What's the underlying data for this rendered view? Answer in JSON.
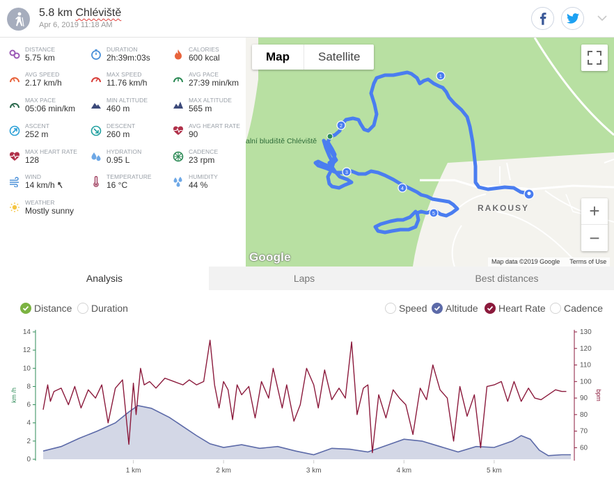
{
  "header": {
    "sport_icon": "hiking-person-icon",
    "distance_title": "5.8 km",
    "place_title": "Chléviště",
    "date": "Apr 6, 2019 11:18 AM",
    "share_icons": [
      "facebook-icon",
      "twitter-icon"
    ],
    "menu_icon": "chevron-down-icon"
  },
  "stats": [
    {
      "key": "distance",
      "label": "DISTANCE",
      "value": "5.75 km",
      "icon": "distance-icon",
      "color": "#9b59b6"
    },
    {
      "key": "duration",
      "label": "DURATION",
      "value": "2h:39m:03s",
      "icon": "stopwatch-icon",
      "color": "#4a90d9"
    },
    {
      "key": "calories",
      "label": "CALORIES",
      "value": "600 kcal",
      "icon": "flame-icon",
      "color": "#e8643c"
    },
    {
      "key": "avg_speed",
      "label": "AVG SPEED",
      "value": "2.17 km/h",
      "icon": "speedometer-icon",
      "color": "#e8643c"
    },
    {
      "key": "max_speed",
      "label": "MAX SPEED",
      "value": "11.76 km/h",
      "icon": "speedometer-max-icon",
      "color": "#d9413c"
    },
    {
      "key": "avg_pace",
      "label": "AVG PACE",
      "value": "27:39 min/km",
      "icon": "pace-icon",
      "color": "#2e8b57"
    },
    {
      "key": "max_pace",
      "label": "MAX PACE",
      "value": "05:06 min/km",
      "icon": "pace-max-icon",
      "color": "#2e6b4f"
    },
    {
      "key": "min_altitude",
      "label": "MIN ALTITUDE",
      "value": "460 m",
      "icon": "mountain-icon",
      "color": "#3c4a7a"
    },
    {
      "key": "max_altitude",
      "label": "MAX ALTITUDE",
      "value": "565 m",
      "icon": "mountain-peak-icon",
      "color": "#3c4a7a"
    },
    {
      "key": "ascent",
      "label": "ASCENT",
      "value": "252 m",
      "icon": "ascent-icon",
      "color": "#2a9fd6"
    },
    {
      "key": "descent",
      "label": "DESCENT",
      "value": "260 m",
      "icon": "descent-icon",
      "color": "#21a0a0"
    },
    {
      "key": "avg_heart_rate",
      "label": "AVG HEART RATE",
      "value": "90",
      "icon": "heart-rate-icon",
      "color": "#b0314a"
    },
    {
      "key": "max_heart_rate",
      "label": "MAX HEART RATE",
      "value": "128",
      "icon": "heart-max-icon",
      "color": "#b0314a"
    },
    {
      "key": "hydration",
      "label": "HYDRATION",
      "value": "0.95 L",
      "icon": "water-drops-icon",
      "color": "#6ea8e6"
    },
    {
      "key": "cadence",
      "label": "CADENCE",
      "value": "23 rpm",
      "icon": "cadence-icon",
      "color": "#2e8b57"
    },
    {
      "key": "wind",
      "label": "WIND",
      "value": "14 km/h",
      "icon": "wind-icon",
      "color": "#4a90d9",
      "direction_icon": "wind-direction-arrow-icon"
    },
    {
      "key": "temperature",
      "label": "TEMPERATURE",
      "value": "16 °C",
      "icon": "thermometer-icon",
      "color": "#a04060"
    },
    {
      "key": "humidity",
      "label": "HUMIDITY",
      "value": "44 %",
      "icon": "humidity-icon",
      "color": "#6ea8e6"
    },
    {
      "key": "weather",
      "label": "WEATHER",
      "value": "Mostly sunny",
      "icon": "sun-icon",
      "color": "#f5c542"
    }
  ],
  "map": {
    "type_map": "Map",
    "type_satellite": "Satellite",
    "place_label": "alní bludiště Chléviště",
    "town_label": "RAKOUSY",
    "google_logo": "Google",
    "attribution": "Map data ©2019 Google",
    "terms": "Terms of Use",
    "markers": [
      "1",
      "2",
      "3",
      "4",
      "5"
    ],
    "zoom_in": "+",
    "zoom_out": "−",
    "route_color": "#4a7df0",
    "land_color": "#b8e0a2"
  },
  "tabs": [
    {
      "label": "Analysis",
      "active": true
    },
    {
      "label": "Laps",
      "active": false
    },
    {
      "label": "Best distances",
      "active": false
    }
  ],
  "options": {
    "x_axis": [
      {
        "label": "Distance",
        "checked": true,
        "color": "#7cb342"
      },
      {
        "label": "Duration",
        "checked": false
      }
    ],
    "series": [
      {
        "label": "Speed",
        "checked": false
      },
      {
        "label": "Altitude",
        "checked": true,
        "color": "#5c6aa8"
      },
      {
        "label": "Heart Rate",
        "checked": true,
        "color": "#8b1a3c"
      },
      {
        "label": "Cadence",
        "checked": false
      }
    ]
  },
  "chart_data": {
    "type": "line",
    "x_ticks": [
      "1 km",
      "2 km",
      "3 km",
      "4 km",
      "5 km"
    ],
    "x_tick_values": [
      1,
      2,
      3,
      4,
      5
    ],
    "xlim": [
      0,
      5.85
    ],
    "left_axis": {
      "label": "km /h",
      "ticks": [
        0,
        2,
        4,
        6,
        8,
        10,
        12,
        14
      ],
      "lim": [
        0,
        14
      ],
      "color": "#2e8b57"
    },
    "right_axis": {
      "label": "bpm",
      "ticks": [
        60,
        70,
        80,
        90,
        100,
        110,
        120,
        130
      ],
      "lim": [
        53,
        130
      ],
      "color": "#8b1a3c"
    },
    "series": [
      {
        "name": "Altitude",
        "kind": "area",
        "color": "#5c6aa8",
        "fill": "#d3d7e6",
        "axis": "left",
        "x": [
          0,
          0.2,
          0.4,
          0.6,
          0.8,
          0.95,
          1.05,
          1.2,
          1.4,
          1.55,
          1.7,
          1.85,
          2.0,
          2.2,
          2.4,
          2.6,
          2.8,
          3.0,
          3.2,
          3.4,
          3.6,
          3.8,
          4.0,
          4.2,
          4.4,
          4.6,
          4.8,
          5.0,
          5.2,
          5.3,
          5.4,
          5.5,
          5.6,
          5.75,
          5.85
        ],
        "y": [
          0.9,
          1.4,
          2.3,
          3.1,
          4.0,
          5.2,
          5.9,
          5.6,
          4.6,
          3.6,
          2.6,
          1.7,
          1.3,
          1.6,
          1.2,
          1.4,
          0.9,
          0.5,
          1.2,
          1.1,
          0.8,
          1.5,
          2.2,
          2.0,
          1.4,
          0.8,
          1.4,
          1.3,
          2.0,
          2.6,
          2.2,
          1.0,
          0.4,
          0.5,
          0.5
        ]
      },
      {
        "name": "Heart Rate",
        "kind": "line",
        "color": "#8b1a3c",
        "axis": "right",
        "x": [
          0,
          0.05,
          0.08,
          0.12,
          0.2,
          0.28,
          0.35,
          0.42,
          0.5,
          0.58,
          0.65,
          0.72,
          0.8,
          0.88,
          0.95,
          1.0,
          1.03,
          1.08,
          1.12,
          1.18,
          1.25,
          1.35,
          1.45,
          1.55,
          1.62,
          1.7,
          1.78,
          1.85,
          1.9,
          1.95,
          2.0,
          2.05,
          2.1,
          2.15,
          2.2,
          2.28,
          2.35,
          2.42,
          2.5,
          2.55,
          2.6,
          2.65,
          2.7,
          2.78,
          2.85,
          2.92,
          3.0,
          3.05,
          3.12,
          3.2,
          3.28,
          3.35,
          3.42,
          3.48,
          3.55,
          3.6,
          3.65,
          3.72,
          3.8,
          3.88,
          3.95,
          4.02,
          4.1,
          4.18,
          4.25,
          4.32,
          4.4,
          4.48,
          4.55,
          4.62,
          4.7,
          4.78,
          4.85,
          4.92,
          5.0,
          5.08,
          5.15,
          5.22,
          5.3,
          5.38,
          5.45,
          5.52,
          5.6,
          5.68,
          5.75,
          5.8
        ],
        "y": [
          83,
          98,
          88,
          94,
          96,
          86,
          97,
          84,
          95,
          90,
          98,
          75,
          96,
          101,
          62,
          99,
          80,
          108,
          98,
          100,
          96,
          102,
          100,
          98,
          101,
          98,
          100,
          125,
          98,
          84,
          100,
          95,
          77,
          98,
          92,
          97,
          78,
          100,
          90,
          108,
          96,
          84,
          98,
          76,
          86,
          108,
          98,
          84,
          107,
          89,
          96,
          90,
          124,
          80,
          96,
          98,
          57,
          92,
          78,
          95,
          90,
          86,
          68,
          96,
          89,
          110,
          95,
          90,
          64,
          97,
          79,
          92,
          60,
          97,
          98,
          100,
          88,
          100,
          88,
          96,
          90,
          89,
          92,
          95,
          94,
          94
        ]
      }
    ]
  }
}
